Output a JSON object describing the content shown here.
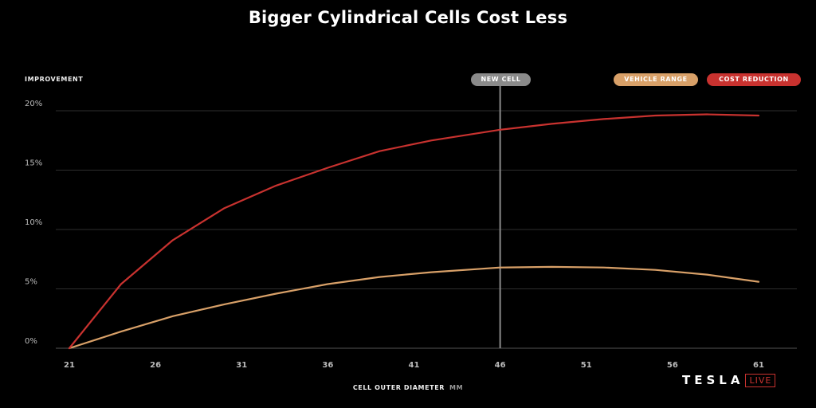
{
  "chart_data": {
    "type": "line",
    "title": "Bigger Cylindrical Cells Cost Less",
    "ylabel": "IMPROVEMENT",
    "xlabel": "CELL OUTER DIAMETER",
    "xunit": "MM",
    "xlim": [
      21,
      61
    ],
    "ylim": [
      0,
      20
    ],
    "x_ticks": [
      21,
      26,
      31,
      36,
      41,
      46,
      51,
      56,
      61
    ],
    "y_ticks": [
      {
        "value": 0,
        "label": "0%"
      },
      {
        "value": 5,
        "label": "5%"
      },
      {
        "value": 10,
        "label": "10%"
      },
      {
        "value": 15,
        "label": "15%"
      },
      {
        "value": 20,
        "label": "20%"
      }
    ],
    "grid": "horizontal",
    "legend_placement": "top-right",
    "series": [
      {
        "name": "VEHICLE RANGE",
        "color": "#d8a068",
        "points": [
          [
            21,
            0
          ],
          [
            24,
            1.4
          ],
          [
            27,
            2.7
          ],
          [
            30,
            3.7
          ],
          [
            33,
            4.6
          ],
          [
            36,
            5.4
          ],
          [
            39,
            6.0
          ],
          [
            42,
            6.4
          ],
          [
            46,
            6.8
          ],
          [
            49,
            6.85
          ],
          [
            52,
            6.8
          ],
          [
            55,
            6.6
          ],
          [
            58,
            6.2
          ],
          [
            61,
            5.6
          ]
        ]
      },
      {
        "name": "COST REDUCTION",
        "color": "#c8322f",
        "points": [
          [
            21,
            0
          ],
          [
            24,
            5.4
          ],
          [
            27,
            9.1
          ],
          [
            30,
            11.8
          ],
          [
            33,
            13.7
          ],
          [
            36,
            15.2
          ],
          [
            39,
            16.6
          ],
          [
            42,
            17.5
          ],
          [
            46,
            18.4
          ],
          [
            49,
            18.9
          ],
          [
            52,
            19.3
          ],
          [
            55,
            19.6
          ],
          [
            58,
            19.7
          ],
          [
            61,
            19.6
          ]
        ]
      }
    ],
    "marker": {
      "x": 46,
      "label": "NEW CELL",
      "color": "#8a8a8a"
    }
  },
  "branding": {
    "logo_text": "TESLA",
    "logo_suffix": "LIVE"
  }
}
